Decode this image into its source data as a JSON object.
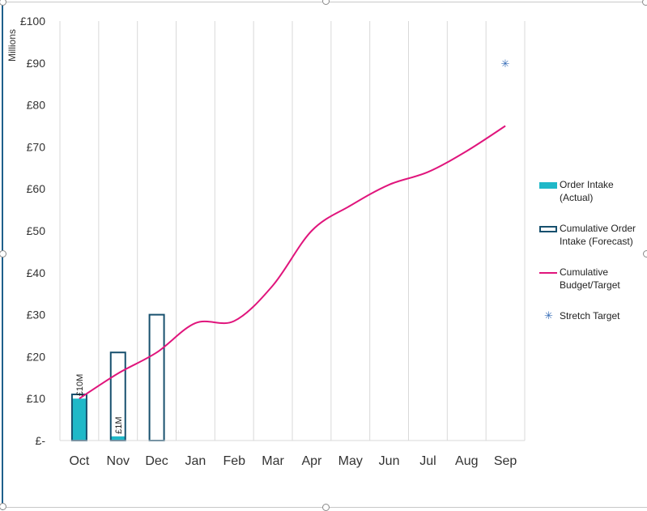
{
  "chart_data": {
    "type": "bar",
    "title": "",
    "xlabel": "",
    "ylabel": "Millions",
    "ylim": [
      0,
      100
    ],
    "y_ticks": [
      0,
      10,
      20,
      30,
      40,
      50,
      60,
      70,
      80,
      90,
      100
    ],
    "y_tick_labels": [
      "£-",
      "£10",
      "£20",
      "£30",
      "£40",
      "£50",
      "£60",
      "£70",
      "£80",
      "£90",
      "£100"
    ],
    "categories": [
      "Oct",
      "Nov",
      "Dec",
      "Jan",
      "Feb",
      "Mar",
      "Apr",
      "May",
      "Jun",
      "Jul",
      "Aug",
      "Sep"
    ],
    "grid": "vertical",
    "legend_position": "right",
    "series": [
      {
        "name": "Order Intake (Actual)",
        "kind": "bar",
        "color": "#1fb8c8",
        "values": [
          10,
          1,
          null,
          null,
          null,
          null,
          null,
          null,
          null,
          null,
          null,
          null
        ],
        "data_labels": [
          "£10M",
          "£1M",
          "",
          "",
          "",
          "",
          "",
          "",
          "",
          "",
          "",
          ""
        ]
      },
      {
        "name": "Cumulative Order Intake (Forecast)",
        "kind": "bar-outline",
        "color": "#17506e",
        "values": [
          11,
          21,
          30,
          null,
          null,
          null,
          null,
          null,
          null,
          null,
          null,
          null
        ]
      },
      {
        "name": "Cumulative Budget/Target",
        "kind": "line",
        "color": "#e0157c",
        "values": [
          10,
          16,
          21,
          28,
          28.5,
          37,
          50,
          56,
          61,
          64,
          69,
          75
        ]
      },
      {
        "name": "Stretch Target",
        "kind": "point",
        "color": "#3a6fb8",
        "values": [
          null,
          null,
          null,
          null,
          null,
          null,
          null,
          null,
          null,
          null,
          null,
          90
        ]
      }
    ]
  },
  "legend": {
    "items": [
      {
        "label": "Order Intake (Actual)",
        "kind": "fill",
        "color": "#1fb8c8"
      },
      {
        "label": "Cumulative Order Intake (Forecast)",
        "kind": "outline",
        "color": "#17506e"
      },
      {
        "label": "Cumulative Budget/Target",
        "kind": "line",
        "color": "#e0157c"
      },
      {
        "label": "Stretch Target",
        "kind": "marker",
        "color": "#3a6fb8"
      }
    ]
  }
}
